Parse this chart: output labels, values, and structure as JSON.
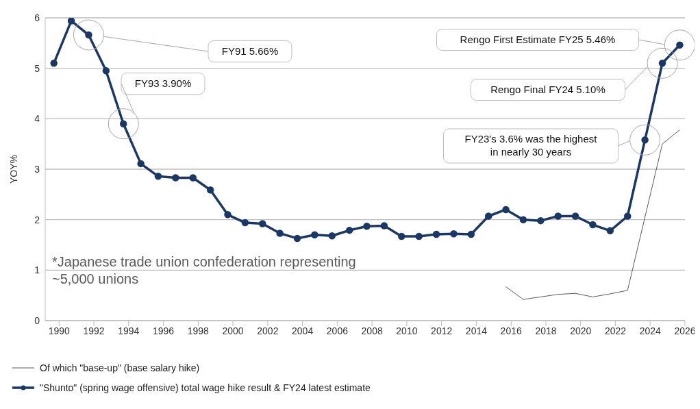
{
  "chart_data": {
    "type": "line",
    "ylabel": "YOY%",
    "xlim": [
      1989.2,
      2026
    ],
    "xticks": [
      1990,
      1992,
      1994,
      1996,
      1998,
      2000,
      2002,
      2004,
      2006,
      2008,
      2010,
      2012,
      2014,
      2016,
      2018,
      2020,
      2022,
      2024,
      2026
    ],
    "ylim": [
      0,
      6
    ],
    "yticks": [
      0,
      1,
      2,
      3,
      4,
      5,
      6
    ],
    "grid": "y",
    "legend": "bottom",
    "series": [
      {
        "name": "Of which \"base-up\" (base salary hike)",
        "color": "#595959",
        "marker": "none",
        "x": [
          2015.7,
          2016.7,
          2017.7,
          2018.7,
          2019.7,
          2020.7,
          2021.7,
          2022.7,
          2023.7,
          2024.7,
          2025.7
        ],
        "values": [
          0.67,
          0.42,
          0.47,
          0.52,
          0.54,
          0.47,
          0.53,
          0.6,
          2.05,
          3.5,
          3.78
        ]
      },
      {
        "name": "\"Shunto\" (spring wage offensive) total wage hike result & FY24 latest estimate",
        "color": "#1b3763",
        "marker": "circle",
        "x": [
          1989.7,
          1990.7,
          1991.7,
          1992.7,
          1993.7,
          1994.7,
          1995.7,
          1996.7,
          1997.7,
          1998.7,
          1999.7,
          2000.7,
          2001.7,
          2002.7,
          2003.7,
          2004.7,
          2005.7,
          2006.7,
          2007.7,
          2008.7,
          2009.7,
          2010.7,
          2011.7,
          2012.7,
          2013.7,
          2014.7,
          2015.7,
          2016.7,
          2017.7,
          2018.7,
          2019.7,
          2020.7,
          2021.7,
          2022.7,
          2023.7,
          2024.7,
          2025.7
        ],
        "values": [
          5.1,
          5.94,
          5.66,
          4.95,
          3.9,
          3.11,
          2.86,
          2.83,
          2.83,
          2.59,
          2.1,
          1.94,
          1.92,
          1.73,
          1.63,
          1.7,
          1.68,
          1.79,
          1.87,
          1.88,
          1.67,
          1.67,
          1.71,
          1.72,
          1.71,
          2.07,
          2.2,
          2.0,
          1.98,
          2.07,
          2.07,
          1.9,
          1.78,
          2.07,
          3.58,
          5.1,
          5.46
        ]
      }
    ],
    "annotations": [
      "FY91 5.66%",
      "FY93 3.90%",
      "FY23's 3.6% was the highest in nearly 30 years",
      "Rengo Final FY24 5.10%",
      "Rengo First Estimate FY25 5.46%",
      "*Japanese trade union confederation representing ~5,000 unions"
    ]
  }
}
